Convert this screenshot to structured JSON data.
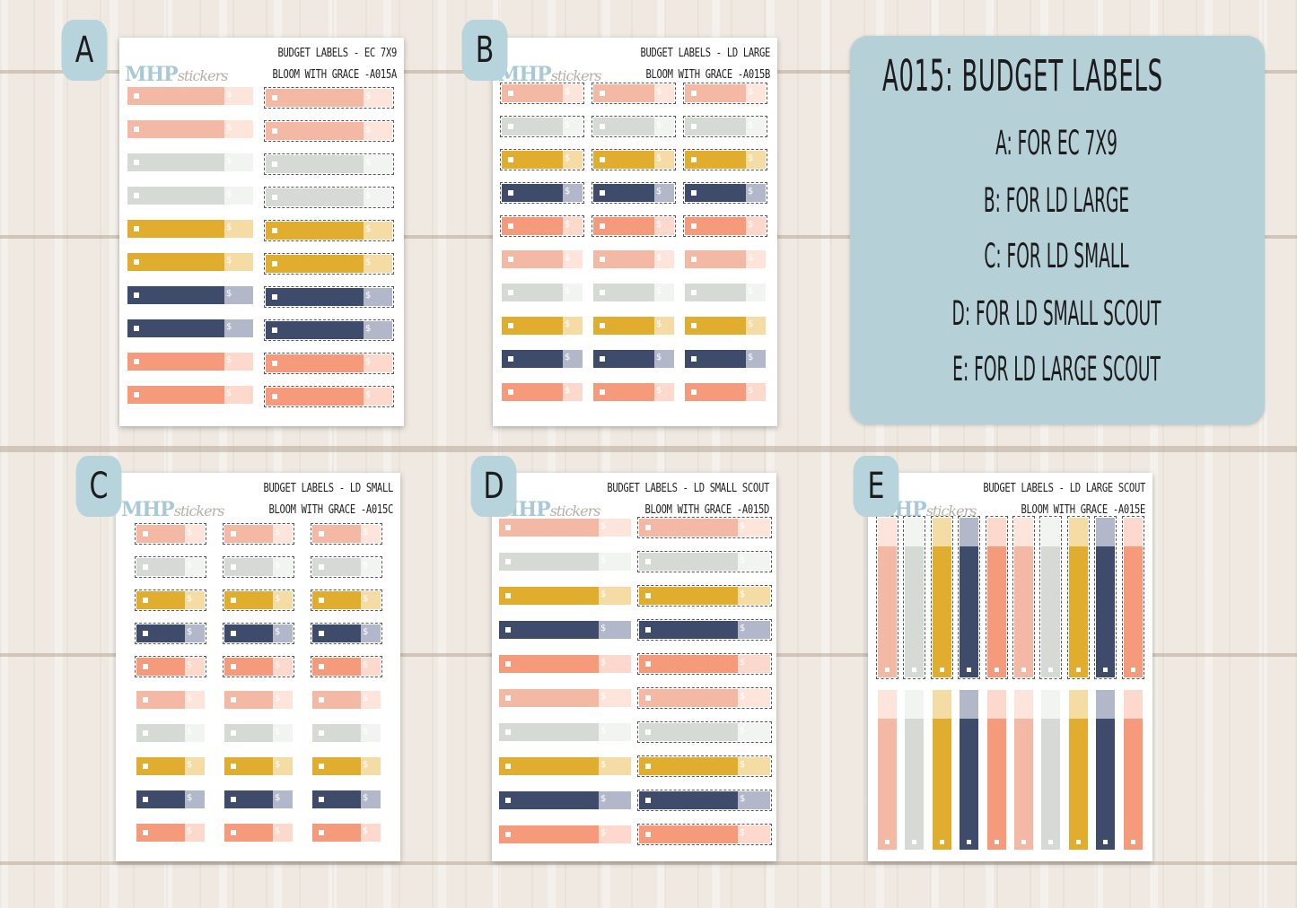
{
  "panel": {
    "title": "A015: BUDGET LABELS",
    "lines": [
      "A: FOR EC 7X9",
      "B: FOR LD LARGE",
      "C: FOR LD SMALL",
      "D: FOR LD SMALL SCOUT",
      "E: FOR LD LARGE SCOUT"
    ]
  },
  "logo": {
    "part1": "MHP",
    "part2": "stickers"
  },
  "sheets": [
    {
      "badge": "A",
      "line1": "BUDGET LABELS - EC 7X9",
      "line2": "BLOOM WITH GRACE -A015A"
    },
    {
      "badge": "B",
      "line1": "BUDGET LABELS - LD LARGE",
      "line2": "BLOOM WITH GRACE -A015B"
    },
    {
      "badge": "C",
      "line1": "BUDGET LABELS - LD SMALL",
      "line2": "BLOOM WITH GRACE -A015C"
    },
    {
      "badge": "D",
      "line1": "BUDGET LABELS - LD SMALL SCOUT",
      "line2": "BLOOM WITH GRACE -A015D"
    },
    {
      "badge": "E",
      "line1": "BUDGET LABELS - LD LARGE SCOUT",
      "line2": "BLOOM WITH GRACE -A015E"
    }
  ],
  "dollar": "$",
  "colors": {
    "pink": "#f4b9a5",
    "pink_tab": "#fde5dc",
    "gray": "#d6dad4",
    "gray_tab": "#f2f4f1",
    "mustard": "#e0ad2e",
    "mustard_tab": "#f4dca4",
    "navy": "#3f4b6a",
    "navy_tab": "#b3b7ca",
    "coral": "#f69a7c",
    "coral_tab": "#fcd9cc"
  }
}
